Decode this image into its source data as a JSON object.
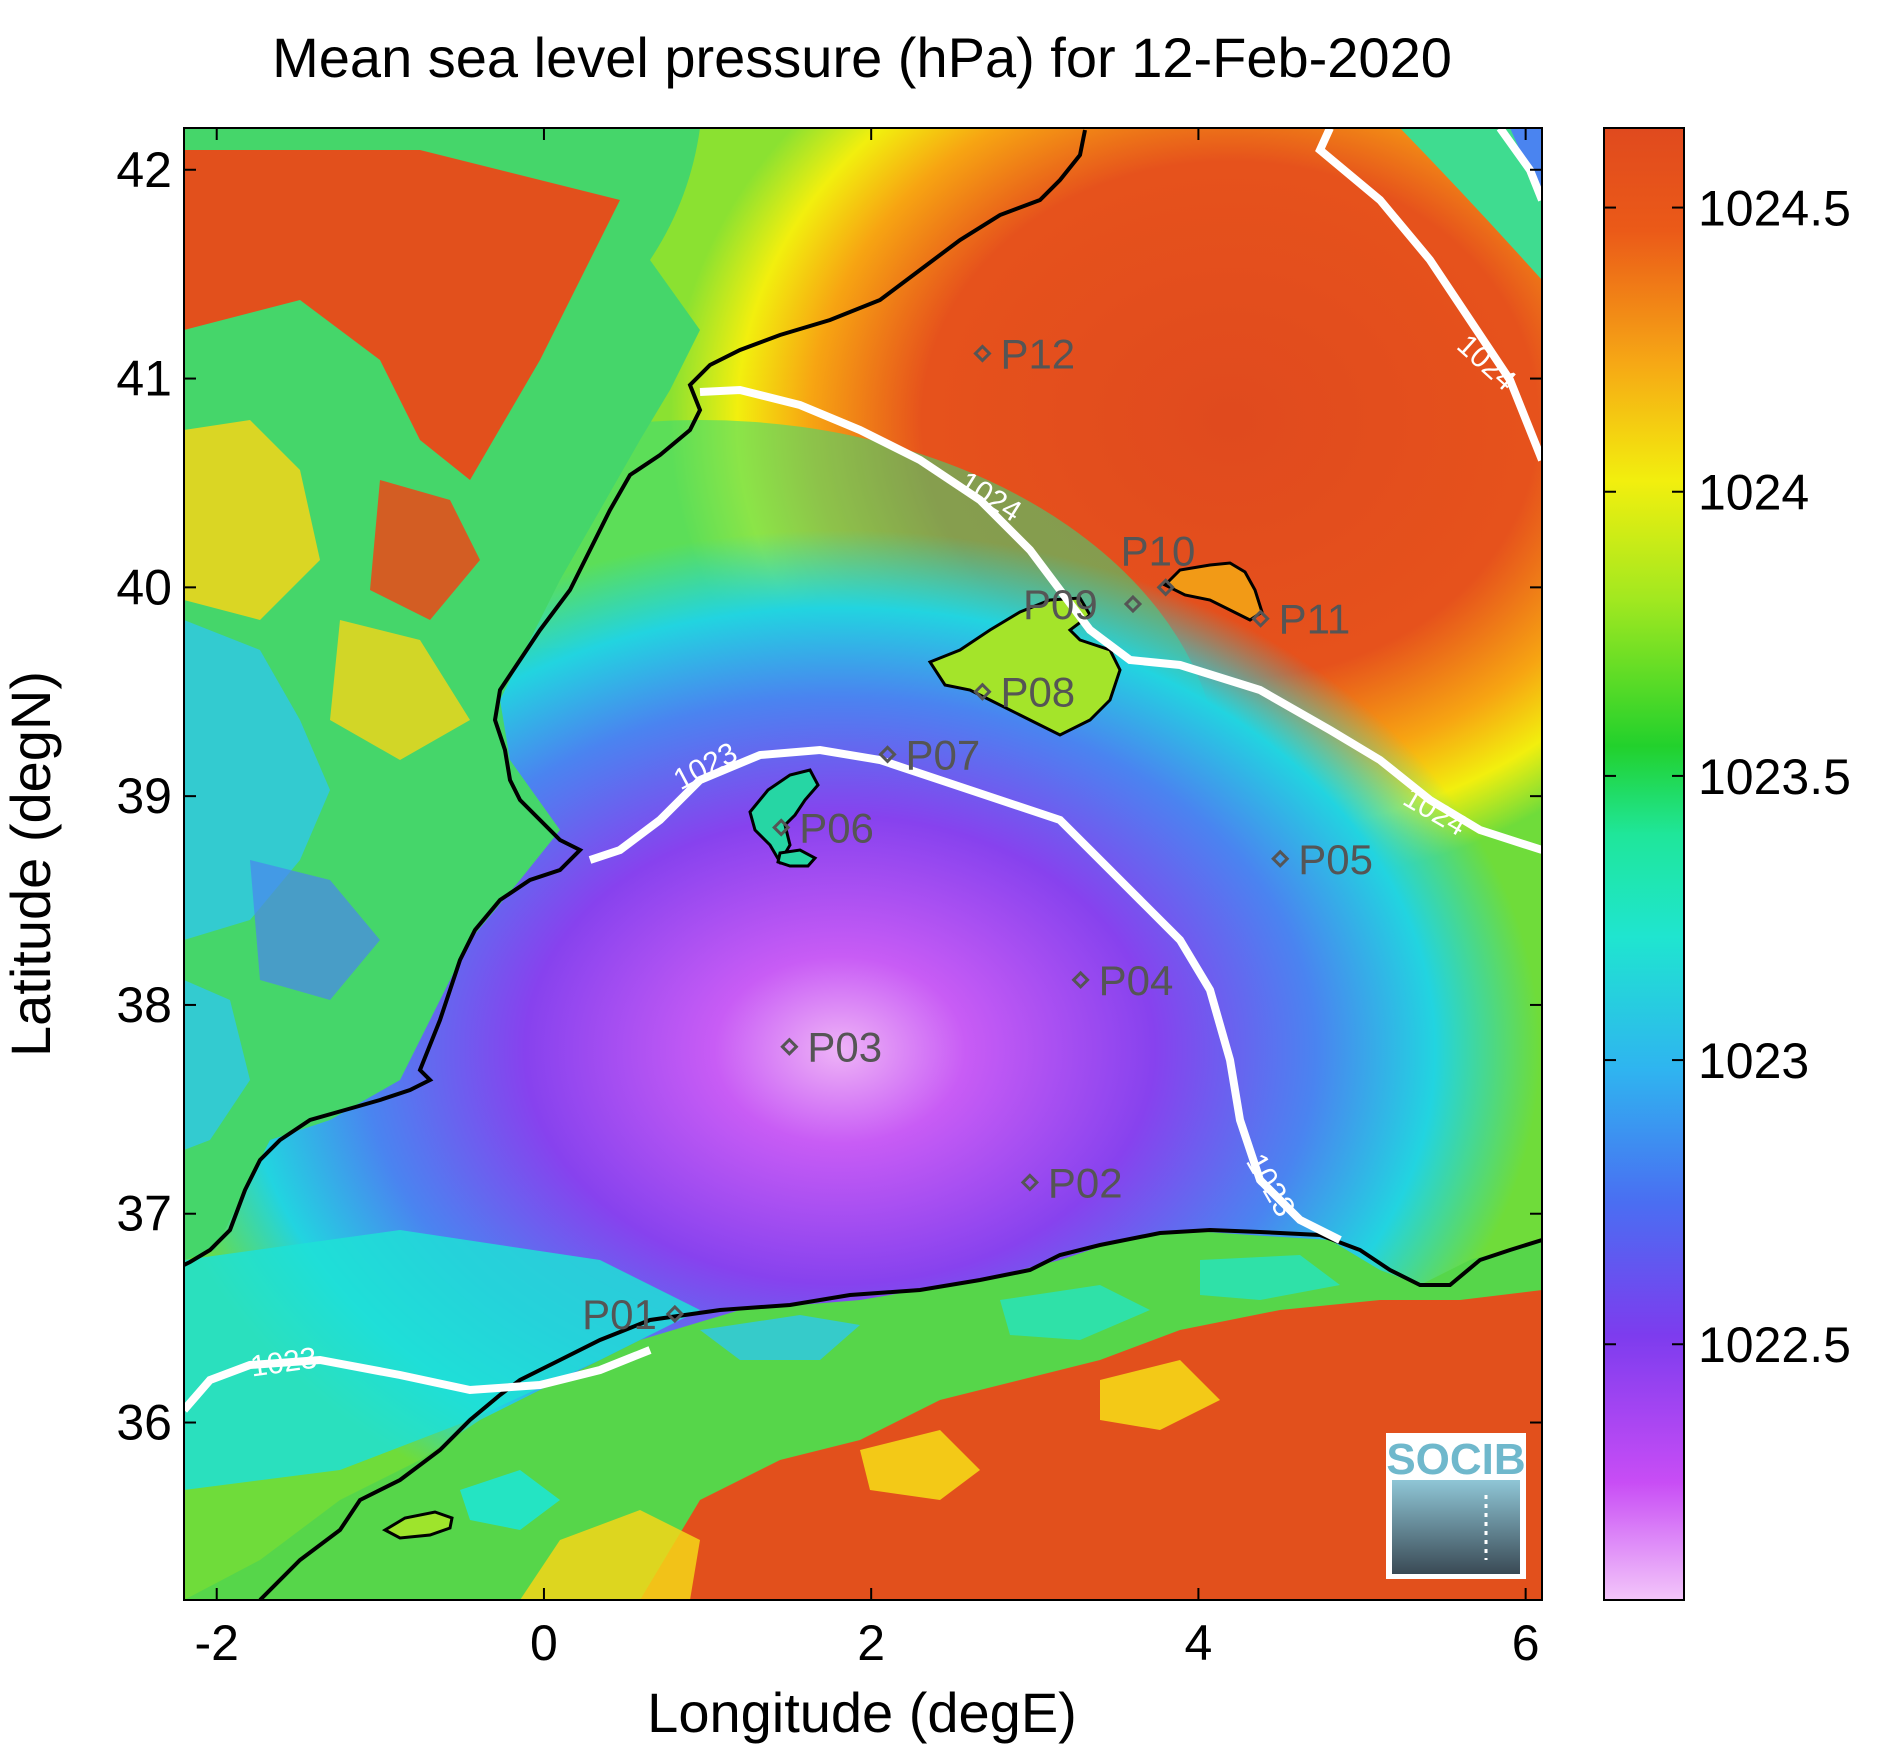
{
  "title": "Mean sea level pressure (hPa) for 12-Feb-2020",
  "xlabel": "Longitude (degE)",
  "ylabel": "Latitude (degN)",
  "x_ticks": [
    "-2",
    "0",
    "2",
    "4",
    "6"
  ],
  "y_ticks": [
    "36",
    "37",
    "38",
    "39",
    "40",
    "41",
    "42"
  ],
  "colorbar": {
    "ticks": [
      "1022.5",
      "1023",
      "1023.5",
      "1024",
      "1024.5"
    ],
    "tick_values": [
      1022.5,
      1023,
      1023.5,
      1024,
      1024.5
    ],
    "range": [
      1022.05,
      1024.64
    ]
  },
  "contour_labels": [
    "1024",
    "1024",
    "1024",
    "1023",
    "1023",
    "1023"
  ],
  "logo": "SOCIB",
  "colors": {
    "high": "#e04a1e",
    "mid": "#22d22b",
    "low": "#7f3ff0",
    "min": "#e8a6f5",
    "contour": "#ffffff",
    "coast": "#000000"
  },
  "points": [
    {
      "name": "P01",
      "lon": 0.8,
      "lat": 36.52
    },
    {
      "name": "P02",
      "lon": 2.97,
      "lat": 37.15
    },
    {
      "name": "P03",
      "lon": 1.5,
      "lat": 37.8
    },
    {
      "name": "P04",
      "lon": 3.28,
      "lat": 38.12
    },
    {
      "name": "P05",
      "lon": 4.5,
      "lat": 38.7
    },
    {
      "name": "P06",
      "lon": 1.45,
      "lat": 38.85
    },
    {
      "name": "P07",
      "lon": 2.1,
      "lat": 39.2
    },
    {
      "name": "P08",
      "lon": 2.68,
      "lat": 39.5
    },
    {
      "name": "P09",
      "lon": 3.6,
      "lat": 39.92
    },
    {
      "name": "P10",
      "lon": 3.8,
      "lat": 40.0
    },
    {
      "name": "P11",
      "lon": 4.38,
      "lat": 39.85
    },
    {
      "name": "P12",
      "lon": 2.68,
      "lat": 41.12
    }
  ]
}
